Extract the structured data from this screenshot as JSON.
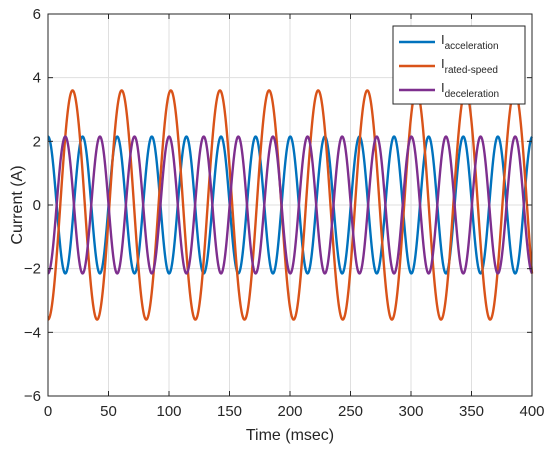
{
  "chart_data": {
    "type": "line",
    "xlabel": "Time (msec)",
    "ylabel": "Current (A)",
    "xlim": [
      0,
      400
    ],
    "ylim": [
      -6,
      6
    ],
    "xticks": [
      0,
      50,
      100,
      150,
      200,
      250,
      300,
      350,
      400
    ],
    "yticks": [
      -6,
      -4,
      -2,
      0,
      2,
      4,
      6
    ],
    "xtick_labels": [
      "0",
      "50",
      "100",
      "150",
      "200",
      "250",
      "300",
      "350",
      "400"
    ],
    "ytick_labels": [
      "−6",
      "−4",
      "−2",
      "0",
      "2",
      "4",
      "6"
    ],
    "grid": true,
    "legend_position": "top-right",
    "series": [
      {
        "name": "I",
        "name_subscript": "acceleration",
        "color": "#0072BD",
        "amplitude": 2.15,
        "period_ms": 28.6,
        "phase_ms": 21.45,
        "x": [
          0,
          7.15,
          14.3,
          21.45,
          28.6,
          35.75,
          42.9,
          50.05,
          57.2,
          64.35,
          71.5,
          78.65,
          85.8,
          92.95,
          100.1,
          107.25,
          114.4,
          121.55,
          128.7,
          135.85,
          143.0,
          150.15,
          157.3,
          164.45,
          171.6,
          178.75,
          185.9,
          193.05,
          200.2,
          207.35,
          214.5,
          221.65,
          228.8,
          235.95,
          243.1,
          250.25,
          257.4,
          264.55,
          271.7,
          278.85,
          286.0,
          293.15,
          300.3,
          307.45,
          314.6,
          321.75,
          328.9,
          336.05,
          343.2,
          350.35,
          357.5,
          364.65,
          371.8,
          378.95,
          386.1,
          393.25,
          400
        ],
        "y": [
          0,
          -2.15,
          0,
          2.15,
          0,
          -2.15,
          0,
          2.15,
          0,
          -2.15,
          0,
          2.15,
          0,
          -2.15,
          0,
          2.15,
          0,
          -2.15,
          0,
          2.15,
          0,
          -2.15,
          0,
          2.15,
          0,
          -2.15,
          0,
          2.15,
          0,
          -2.15,
          0,
          2.15,
          0,
          -2.15,
          0,
          2.15,
          0,
          -2.15,
          0,
          2.15,
          0,
          -2.15,
          0,
          2.15,
          0,
          -2.15,
          0,
          2.15,
          0,
          -2.15,
          0,
          2.15,
          0,
          -2.15,
          0,
          2.15,
          0.1
        ]
      },
      {
        "name": "I",
        "name_subscript": "rated-speed",
        "color": "#D95319",
        "amplitude": 3.6,
        "period_ms": 40.6,
        "phase_ms": 10.15,
        "x": [
          0,
          5.0,
          15.3,
          25.6,
          35.9,
          46.2,
          56.5,
          66.8,
          77.1,
          87.4,
          97.7,
          108.0,
          118.3,
          128.6,
          138.9,
          149.2,
          159.5,
          169.8,
          180.1,
          190.4,
          200.7,
          211.0,
          221.3,
          231.6,
          241.9,
          252.2,
          262.5,
          272.8,
          283.1,
          293.4,
          303.7,
          314.0,
          324.3,
          334.6,
          344.9,
          355.2,
          365.5,
          375.8,
          386.1,
          396.4,
          400
        ],
        "y": [
          2.6,
          3.6,
          0,
          -3.6,
          0,
          3.6,
          0,
          -3.6,
          0,
          3.6,
          0,
          -3.6,
          0,
          3.6,
          0,
          -3.6,
          0,
          3.6,
          0,
          -3.6,
          0,
          3.6,
          0,
          -3.6,
          0,
          3.6,
          0,
          -3.6,
          0,
          3.6,
          0,
          -3.6,
          0,
          3.6,
          0,
          -3.6,
          0,
          3.6,
          0,
          -3.6,
          3.1
        ]
      },
      {
        "name": "I",
        "name_subscript": "deceleration",
        "color": "#7E2F8E",
        "amplitude": 2.15,
        "period_ms": 28.6,
        "phase_ms": 7.15,
        "x": [
          0,
          7.15,
          14.3,
          21.45,
          28.6,
          35.75,
          42.9,
          50.05,
          57.2,
          64.35,
          71.5,
          78.65,
          85.8,
          92.95,
          100.1,
          107.25,
          114.4,
          121.55,
          128.7,
          135.85,
          143.0,
          150.15,
          157.3,
          164.45,
          171.6,
          178.75,
          185.9,
          193.05,
          200.2,
          207.35,
          214.5,
          221.65,
          228.8,
          235.95,
          243.1,
          250.25,
          257.4,
          264.55,
          271.7,
          278.85,
          286.0,
          293.15,
          300.3,
          307.45,
          314.6,
          321.75,
          328.9,
          336.05,
          343.2,
          350.35,
          357.5,
          364.65,
          371.8,
          378.95,
          386.1,
          393.25,
          400
        ],
        "y": [
          0,
          2.15,
          0,
          -2.15,
          0,
          2.15,
          0,
          -2.15,
          0,
          2.15,
          0,
          -2.15,
          0,
          2.15,
          0,
          -2.15,
          0,
          2.15,
          0,
          -2.15,
          0,
          2.15,
          0,
          -2.15,
          0,
          2.15,
          0,
          -2.15,
          0,
          2.15,
          0,
          -2.15,
          0,
          2.15,
          0,
          -2.15,
          0,
          2.15,
          0,
          -2.15,
          0,
          2.15,
          0,
          -2.15,
          0,
          2.15,
          0,
          -2.15,
          0,
          2.15,
          0,
          -2.15,
          0,
          2.15,
          0,
          -2.15,
          1.8
        ]
      }
    ]
  }
}
